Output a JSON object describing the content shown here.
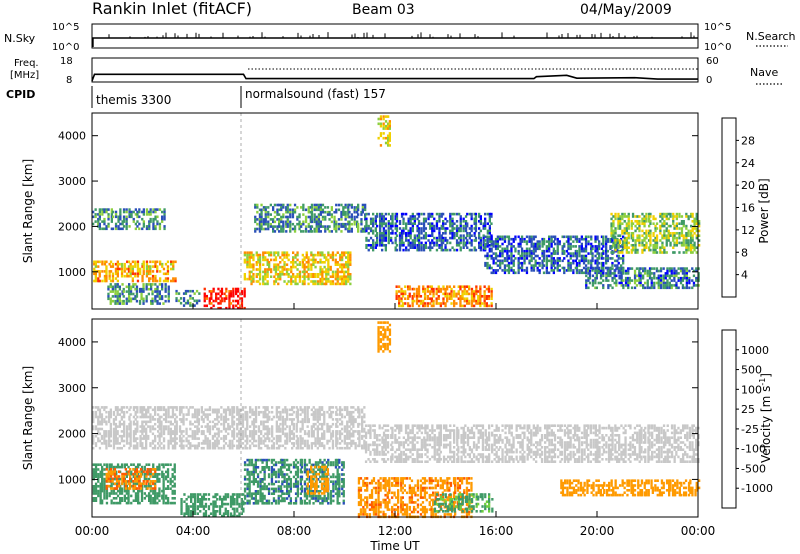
{
  "header": {
    "station": "Rankin Inlet (fitACF)",
    "beam": "Beam 03",
    "date": "04/May/2009"
  },
  "noise_panel": {
    "left_label": "N.Sky",
    "left_ticks": [
      "10^5",
      "10^0"
    ],
    "right_label": "N.Search",
    "right_ticks": [
      "10^5",
      "10^0"
    ]
  },
  "freq_panel": {
    "left_label_1": "Freq.",
    "left_label_2": "[MHz]",
    "left_ticks": [
      "18",
      "8"
    ],
    "right_label": "Nave",
    "right_ticks": [
      "60",
      "0"
    ]
  },
  "cpid_panel": {
    "label": "CPID",
    "modes": [
      {
        "name": "themis 3300",
        "start_hour": 0
      },
      {
        "name": "normalsound (fast) 157",
        "start_hour": 6
      }
    ]
  },
  "power_panel": {
    "ylabel": "Slant Range [km]",
    "yticks": [
      "1000",
      "2000",
      "3000",
      "4000"
    ],
    "colorbar_label": "Power [dB]",
    "colorbar_ticks": [
      "4",
      "8",
      "12",
      "16",
      "20",
      "24",
      "28"
    ],
    "colorbar_colors": [
      "#0000ff",
      "#2a4fb8",
      "#3f9a66",
      "#8ccf3e",
      "#f0d000",
      "#ff8c00",
      "#ff3000",
      "#ff0000"
    ]
  },
  "velocity_panel": {
    "ylabel": "Slant Range [km]",
    "yticks": [
      "1000",
      "2000",
      "3000",
      "4000"
    ],
    "colorbar_label": "Velocity [m s",
    "colorbar_sup": "-1",
    "colorbar_label_end": "]",
    "colorbar_ticks": [
      "-1000",
      "-500",
      "-100",
      "-25",
      "25",
      "100",
      "500",
      "1000"
    ],
    "colorbar_colors": [
      "#ff0000",
      "#ff5a00",
      "#ff9a00",
      "#ffd27f",
      "#c8c8c8",
      "#6fcf3f",
      "#3f9a66",
      "#2a4fb8",
      "#0000ff"
    ]
  },
  "x_axis": {
    "label": "Time UT",
    "ticks": [
      "00:00",
      "04:00",
      "08:00",
      "12:00",
      "16:00",
      "20:00",
      "00:00"
    ]
  },
  "chart_data": {
    "type": "heatmap",
    "x_range_hours": [
      0,
      24
    ],
    "y_range_km": [
      180,
      4500
    ],
    "power_regions": [
      {
        "t0": 0.0,
        "t1": 2.8,
        "r0": 1950,
        "r1": 2400,
        "level": 9
      },
      {
        "t0": 0.0,
        "t1": 3.3,
        "r0": 780,
        "r1": 1250,
        "level": 20
      },
      {
        "t0": 0.6,
        "t1": 3.0,
        "r0": 300,
        "r1": 750,
        "level": 10
      },
      {
        "t0": 3.3,
        "t1": 4.2,
        "r0": 250,
        "r1": 600,
        "level": 10
      },
      {
        "t0": 4.4,
        "t1": 6.0,
        "r0": 200,
        "r1": 650,
        "level": 28
      },
      {
        "t0": 6.4,
        "t1": 10.8,
        "r0": 1900,
        "r1": 2500,
        "level": 9
      },
      {
        "t0": 6.0,
        "t1": 10.2,
        "r0": 750,
        "r1": 1450,
        "level": 18
      },
      {
        "t0": 10.8,
        "t1": 15.8,
        "r0": 1500,
        "r1": 2300,
        "level": 7
      },
      {
        "t0": 11.3,
        "t1": 11.8,
        "r0": 3800,
        "r1": 4450,
        "level": 18
      },
      {
        "t0": 12.0,
        "t1": 15.8,
        "r0": 250,
        "r1": 700,
        "level": 22
      },
      {
        "t0": 15.5,
        "t1": 21.0,
        "r0": 1000,
        "r1": 1800,
        "level": 7
      },
      {
        "t0": 20.5,
        "t1": 24.0,
        "r0": 1450,
        "r1": 2300,
        "level": 14
      },
      {
        "t0": 19.5,
        "t1": 24.0,
        "r0": 650,
        "r1": 1100,
        "level": 8
      }
    ],
    "velocity_regions": [
      {
        "t0": 0.0,
        "t1": 10.8,
        "r0": 1700,
        "r1": 2600,
        "value": 0
      },
      {
        "t0": 10.8,
        "t1": 24.0,
        "r0": 1400,
        "r1": 2200,
        "value": 0
      },
      {
        "t0": 0.0,
        "t1": 3.3,
        "r0": 500,
        "r1": 1350,
        "value": 300
      },
      {
        "t0": 0.5,
        "t1": 2.5,
        "r0": 800,
        "r1": 1250,
        "value": -500
      },
      {
        "t0": 3.5,
        "t1": 6.0,
        "r0": 200,
        "r1": 700,
        "value": 300
      },
      {
        "t0": 6.0,
        "t1": 10.0,
        "r0": 500,
        "r1": 1450,
        "value": 400
      },
      {
        "t0": 8.5,
        "t1": 9.3,
        "r0": 700,
        "r1": 1300,
        "value": -300
      },
      {
        "t0": 11.3,
        "t1": 11.8,
        "r0": 3800,
        "r1": 4450,
        "value": -200
      },
      {
        "t0": 10.5,
        "t1": 15.0,
        "r0": 200,
        "r1": 1050,
        "value": -400
      },
      {
        "t0": 13.5,
        "t1": 15.8,
        "r0": 300,
        "r1": 700,
        "value": 120
      },
      {
        "t0": 18.5,
        "t1": 24.0,
        "r0": 650,
        "r1": 1000,
        "value": -300
      }
    ],
    "freq_series": {
      "x": [
        0,
        0.1,
        6.0,
        6.1,
        17.5,
        17.6,
        18.8,
        19.2,
        21.5,
        22.4,
        24
      ],
      "y": [
        8.4,
        11.2,
        11.2,
        9.4,
        9.4,
        10.2,
        10.8,
        9.6,
        9.8,
        9.2,
        9.2
      ]
    }
  }
}
